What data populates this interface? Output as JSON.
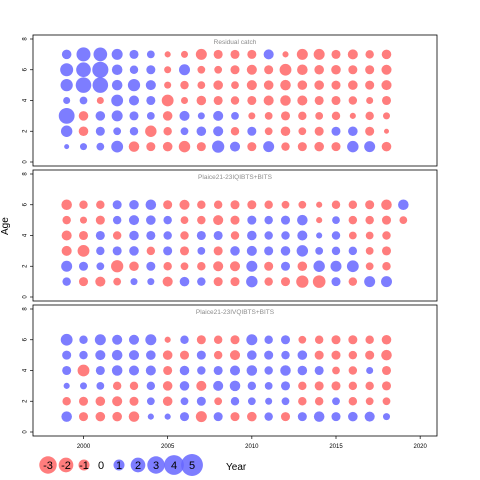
{
  "chart_data": {
    "type": "scatter",
    "subtype": "bubble residual plot",
    "ylabel": "Age",
    "xlabel": "Year",
    "xlim": [
      1997,
      2021
    ],
    "ylim": [
      0,
      8
    ],
    "x_ticks": [
      2000,
      2005,
      2010,
      2015,
      2020
    ],
    "y_ticks": [
      0,
      2,
      4,
      6,
      8
    ],
    "grid": false,
    "colors": {
      "negative": "#ff6666",
      "positive": "#6666ff"
    },
    "legend": {
      "placement": "bottom-left",
      "entries": [
        -3,
        -2,
        -1,
        0,
        1,
        2,
        3,
        4,
        5
      ],
      "labels": [
        "-3",
        "-2",
        "-1",
        "0",
        "1",
        "2",
        "3",
        "4",
        "5"
      ]
    },
    "panels": [
      {
        "title": "Residual catch",
        "years": [
          1999,
          2000,
          2001,
          2002,
          2003,
          2004,
          2005,
          2006,
          2007,
          2008,
          2009,
          2010,
          2011,
          2012,
          2013,
          2014,
          2015,
          2016,
          2017,
          2018
        ],
        "ages": [
          1,
          2,
          3,
          4,
          5,
          6,
          7
        ],
        "residuals": {
          "7": [
            0.7,
            1.8,
            1.7,
            1.0,
            0.6,
            0.4,
            -0.2,
            -0.3,
            -1.0,
            -0.6,
            -0.6,
            -0.6,
            0.8,
            -0.2,
            -1.0,
            -1.0,
            -0.6,
            -0.8,
            -0.5,
            -0.7
          ],
          "6": [
            1.5,
            2.0,
            2.5,
            0.9,
            0.5,
            0.6,
            -0.3,
            1.0,
            -0.4,
            -0.4,
            -0.6,
            -0.8,
            -0.6,
            -1.2,
            -0.9,
            -0.7,
            -0.7,
            -0.6,
            -0.6,
            -0.8
          ],
          "5": [
            1.3,
            2.3,
            2.3,
            0.9,
            1.3,
            0.8,
            -0.3,
            -0.5,
            -0.4,
            -0.7,
            -0.4,
            -0.8,
            -0.7,
            -0.9,
            -0.7,
            -0.7,
            -0.6,
            -0.7,
            -0.6,
            -0.8
          ],
          "4": [
            0.3,
            0.4,
            -0.3,
            1.2,
            0.8,
            0.6,
            -1.2,
            -0.3,
            -0.7,
            -0.6,
            -0.5,
            -0.6,
            -0.8,
            -0.9,
            -0.8,
            -0.6,
            -0.6,
            -0.5,
            -0.3,
            -0.6
          ],
          "3": [
            2.4,
            -0.7,
            0.7,
            1.0,
            0.6,
            0.4,
            -0.7,
            0.8,
            0.3,
            0.8,
            0.4,
            -0.3,
            -0.4,
            -0.6,
            -0.5,
            -0.4,
            -0.5,
            -0.2,
            -0.5,
            -0.3
          ],
          "2": [
            1.1,
            -0.7,
            0.6,
            0.4,
            0.5,
            -1.1,
            -0.5,
            0.4,
            0.7,
            0.8,
            -0.5,
            0.6,
            -0.4,
            -0.7,
            -0.4,
            -0.6,
            0.6,
            0.7,
            -0.6,
            -0.1
          ],
          "1": [
            0.1,
            0.3,
            0.4,
            1.2,
            -0.9,
            -0.6,
            -0.7,
            -1.1,
            -0.6,
            1.3,
            0.8,
            -0.6,
            1.0,
            -0.5,
            -0.6,
            -0.7,
            -0.6,
            1.1,
            1.0,
            -0.7
          ]
        }
      },
      {
        "title": "Plaice21-23IQIBTS+BITS",
        "years": [
          1999,
          2000,
          2001,
          2002,
          2003,
          2004,
          2005,
          2006,
          2007,
          2008,
          2009,
          2010,
          2011,
          2012,
          2013,
          2014,
          2015,
          2016,
          2017,
          2018,
          2019
        ],
        "ages": [
          1,
          2,
          3,
          4,
          5,
          6
        ],
        "residuals": {
          "6": [
            -0.9,
            -0.5,
            -0.5,
            0.6,
            0.7,
            0.9,
            -0.6,
            -0.8,
            -0.5,
            -0.5,
            -0.6,
            -0.6,
            -0.5,
            -0.4,
            -0.4,
            -0.2,
            -0.5,
            -0.5,
            -0.6,
            -0.9,
            0.9
          ],
          "5": [
            -0.5,
            -0.3,
            -0.6,
            0.5,
            0.8,
            0.7,
            0.5,
            -0.4,
            -0.5,
            -0.8,
            -0.6,
            0.6,
            0.5,
            0.6,
            0.9,
            -0.2,
            0.4,
            -0.5,
            -0.5,
            -0.6,
            -0.4
          ],
          "4": [
            -0.8,
            -0.6,
            0.6,
            -0.5,
            0.7,
            0.6,
            0.5,
            -0.5,
            0.6,
            0.6,
            -0.5,
            0.7,
            0.5,
            0.5,
            0.8,
            0.2,
            0.5,
            -0.4,
            -0.4,
            -0.5,
            null
          ],
          "3": [
            -0.8,
            -1.2,
            0.5,
            0.6,
            0.7,
            -0.5,
            0.6,
            -0.6,
            0.4,
            -0.6,
            0.7,
            0.8,
            0.6,
            0.7,
            1.1,
            0.4,
            0.5,
            0.5,
            -0.4,
            -0.6,
            null
          ],
          "2": [
            1.0,
            0.6,
            0.4,
            -1.3,
            -0.7,
            0.6,
            -0.5,
            -0.4,
            -0.5,
            -0.8,
            -0.8,
            1.0,
            -0.6,
            0.6,
            -0.7,
            1.1,
            1.0,
            1.2,
            -0.4,
            -0.5,
            null
          ],
          "1": [
            0.5,
            -0.6,
            -0.8,
            -0.4,
            0.3,
            0.3,
            -0.8,
            0.7,
            0.5,
            -0.6,
            -0.6,
            1.1,
            -0.5,
            -0.6,
            -1.3,
            -1.4,
            0.6,
            -0.5,
            1.0,
            1.0,
            null
          ]
        }
      },
      {
        "title": "Plaice21-23IVQIBTS+BITS",
        "years": [
          1999,
          2000,
          2001,
          2002,
          2003,
          2004,
          2005,
          2006,
          2007,
          2008,
          2009,
          2010,
          2011,
          2012,
          2013,
          2014,
          2015,
          2016,
          2017,
          2018
        ],
        "ages": [
          1,
          2,
          3,
          4,
          5,
          6
        ],
        "residuals": {
          "6": [
            1.2,
            0.5,
            1.0,
            0.8,
            0.8,
            1.0,
            -0.2,
            0.5,
            -0.6,
            -0.5,
            -0.6,
            1.0,
            0.5,
            0.6,
            -0.4,
            -0.5,
            -0.6,
            -0.6,
            -0.5,
            -0.7
          ],
          "5": [
            0.6,
            0.5,
            0.8,
            0.9,
            0.8,
            0.7,
            -0.7,
            -0.6,
            0.6,
            -0.5,
            -0.8,
            0.7,
            0.6,
            0.5,
            0.7,
            -0.6,
            -0.6,
            -0.5,
            -0.6,
            -0.9
          ],
          "4": [
            0.6,
            -1.2,
            0.6,
            0.9,
            0.8,
            0.8,
            -0.6,
            0.7,
            0.5,
            0.6,
            0.8,
            0.9,
            0.5,
            0.9,
            0.7,
            0.6,
            -0.4,
            -0.5,
            0.3,
            -0.6
          ],
          "3": [
            0.2,
            0.3,
            0.4,
            -0.5,
            -0.5,
            0.5,
            -0.7,
            0.7,
            -0.8,
            0.8,
            0.9,
            0.5,
            0.4,
            0.6,
            -0.5,
            -0.6,
            -0.6,
            -0.5,
            -0.5,
            -0.6
          ],
          "2": [
            -0.5,
            -0.6,
            -0.7,
            -0.8,
            -0.6,
            0.4,
            -0.7,
            0.4,
            0.6,
            -0.4,
            0.5,
            0.4,
            0.3,
            0.4,
            -0.5,
            -0.5,
            0.4,
            -0.5,
            -0.4,
            -0.4
          ],
          "1": [
            0.9,
            -0.6,
            -0.7,
            -0.7,
            -0.9,
            0.2,
            0.2,
            0.6,
            -1.0,
            0.6,
            -0.6,
            -0.7,
            0.5,
            -0.6,
            0.6,
            0.9,
            0.6,
            0.7,
            0.8,
            0.3
          ]
        }
      }
    ]
  }
}
